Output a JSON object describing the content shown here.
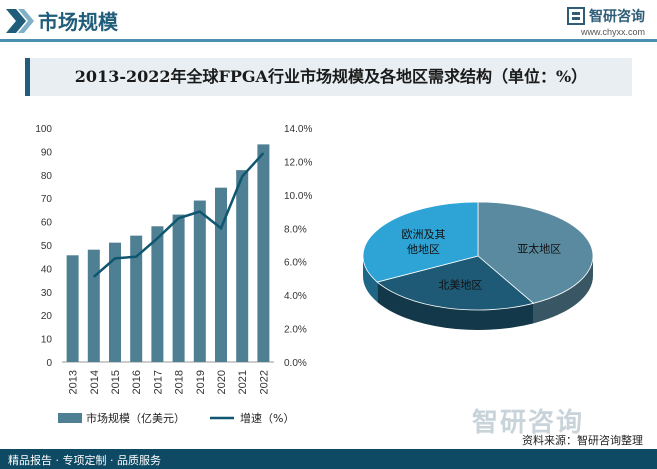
{
  "header": {
    "title": "市场规模",
    "brand_name": "智研咨询",
    "brand_url": "www.chyxx.com"
  },
  "chart_title": "2013-2022年全球FPGA行业市场规模及各地区需求结构（单位：%）",
  "chart_data": [
    {
      "type": "bar",
      "categories": [
        "2013",
        "2014",
        "2015",
        "2016",
        "2017",
        "2018",
        "2019",
        "2020",
        "2021",
        "2022"
      ],
      "series": [
        {
          "name": "市场规模（亿美元）",
          "kind": "bar",
          "axis": "left",
          "values": [
            45.6,
            48.0,
            51.0,
            54.0,
            58.0,
            63.0,
            69.0,
            74.5,
            82.0,
            93.0
          ],
          "color": "#4f7f93"
        },
        {
          "name": "增速（%）",
          "kind": "line",
          "axis": "right",
          "values": [
            null,
            5.1,
            6.2,
            6.3,
            7.4,
            8.6,
            9.0,
            8.0,
            11.1,
            12.5
          ],
          "color": "#0f5670"
        }
      ],
      "y_left": {
        "min": 0,
        "max": 100,
        "ticks": [
          0,
          10,
          20,
          30,
          40,
          50,
          60,
          70,
          80,
          90,
          100
        ]
      },
      "y_right": {
        "min": 0,
        "max": 14,
        "ticks": [
          "0.0%",
          "2.0%",
          "4.0%",
          "6.0%",
          "8.0%",
          "10.0%",
          "12.0%",
          "14.0%"
        ]
      },
      "grid": false,
      "legend": "bottom"
    },
    {
      "type": "pie",
      "style": "3d",
      "slices": [
        {
          "label": "亚太地区",
          "value": 42,
          "color": "#5a8aa0"
        },
        {
          "label": "北美地区",
          "value": 25,
          "color": "#1e5a75"
        },
        {
          "label": "欧洲及其他地区",
          "label_lines": [
            "欧洲及其",
            "他地区"
          ],
          "value": 33,
          "color": "#2ea4d6"
        }
      ],
      "legend": "none"
    }
  ],
  "footer": {
    "services": "精品报告 · 专项定制 · 品质服务",
    "source": "资料来源：智研咨询整理",
    "watermark": "智研咨询"
  },
  "colors": {
    "brand": "#1f5d7a",
    "footer": "#0e4a63"
  }
}
